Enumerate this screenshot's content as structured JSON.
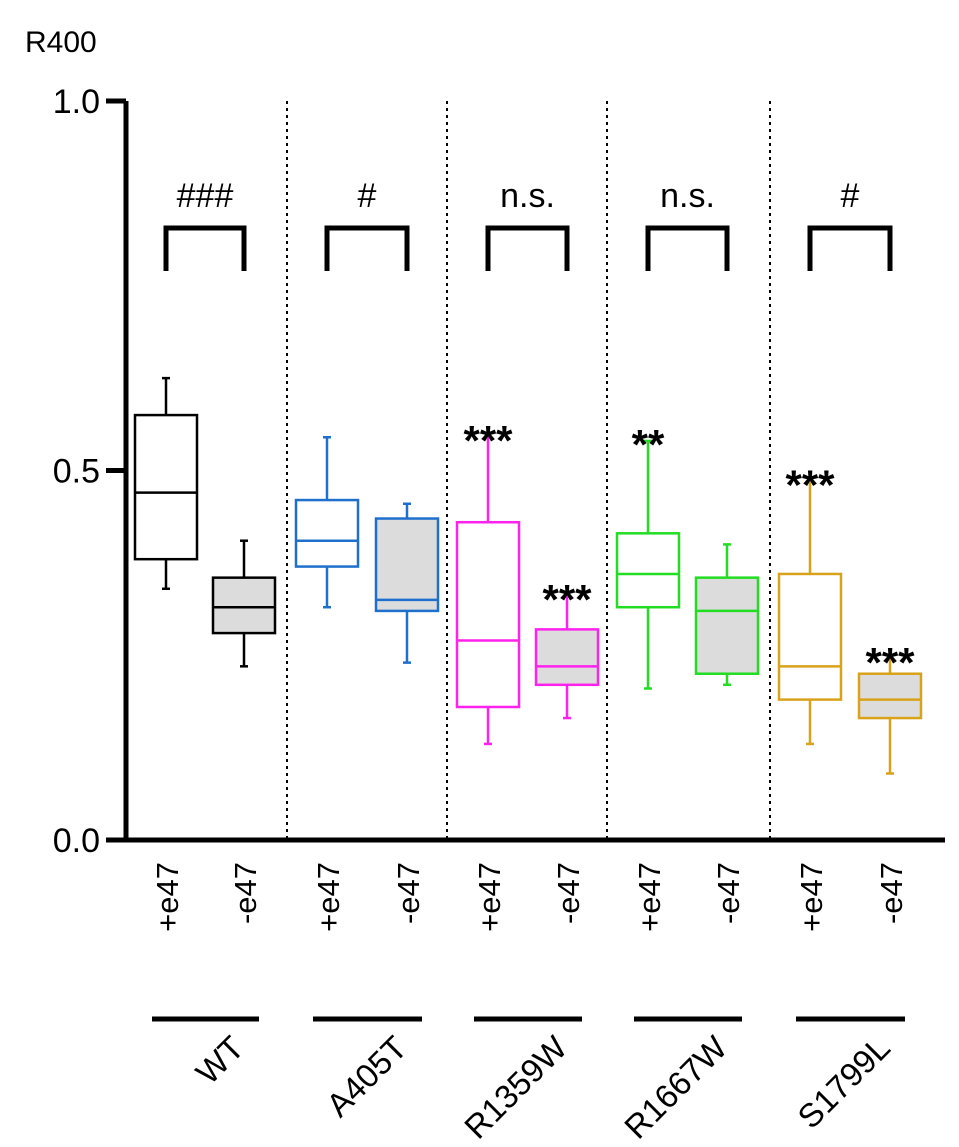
{
  "chart_data": {
    "type": "box",
    "ylabel": "R400",
    "ylim": [
      0.0,
      1.0
    ],
    "yticks": [
      0.0,
      0.5,
      1.0
    ],
    "ytick_labels": [
      "0.0",
      "0.5",
      "1.0"
    ],
    "groups": [
      {
        "name": "WT",
        "color": "#000000",
        "significance": "###",
        "boxes": [
          {
            "label": "+e47",
            "fill": "#ffffff",
            "min": 0.34,
            "q1": 0.38,
            "median": 0.47,
            "q3": 0.575,
            "max": 0.625,
            "annotation": ""
          },
          {
            "label": "-e47",
            "fill": "#dcdcdc",
            "min": 0.235,
            "q1": 0.28,
            "median": 0.315,
            "q3": 0.355,
            "max": 0.405,
            "annotation": ""
          }
        ]
      },
      {
        "name": "A405T",
        "color": "#1f6fcc",
        "significance": "#",
        "boxes": [
          {
            "label": "+e47",
            "fill": "#ffffff",
            "min": 0.315,
            "q1": 0.37,
            "median": 0.405,
            "q3": 0.46,
            "max": 0.545,
            "annotation": ""
          },
          {
            "label": "-e47",
            "fill": "#dcdcdc",
            "min": 0.24,
            "q1": 0.31,
            "median": 0.325,
            "q3": 0.435,
            "max": 0.455,
            "annotation": ""
          }
        ]
      },
      {
        "name": "R1359W",
        "color": "#ff22ee",
        "significance": "n.s.",
        "boxes": [
          {
            "label": "+e47",
            "fill": "#ffffff",
            "min": 0.13,
            "q1": 0.18,
            "median": 0.27,
            "q3": 0.43,
            "max": 0.545,
            "annotation": "***"
          },
          {
            "label": "-e47",
            "fill": "#dcdcdc",
            "min": 0.165,
            "q1": 0.21,
            "median": 0.235,
            "q3": 0.285,
            "max": 0.33,
            "annotation": "***"
          }
        ]
      },
      {
        "name": "R1667W",
        "color": "#22dd22",
        "significance": "n.s.",
        "boxes": [
          {
            "label": "+e47",
            "fill": "#ffffff",
            "min": 0.205,
            "q1": 0.315,
            "median": 0.36,
            "q3": 0.415,
            "max": 0.54,
            "annotation": "**"
          },
          {
            "label": "-e47",
            "fill": "#dcdcdc",
            "min": 0.21,
            "q1": 0.225,
            "median": 0.31,
            "q3": 0.355,
            "max": 0.4,
            "annotation": ""
          }
        ]
      },
      {
        "name": "S1799L",
        "color": "#d9a21b",
        "significance": "#",
        "boxes": [
          {
            "label": "+e47",
            "fill": "#ffffff",
            "min": 0.13,
            "q1": 0.19,
            "median": 0.235,
            "q3": 0.36,
            "max": 0.485,
            "annotation": "***"
          },
          {
            "label": "-e47",
            "fill": "#dcdcdc",
            "min": 0.09,
            "q1": 0.165,
            "median": 0.19,
            "q3": 0.225,
            "max": 0.245,
            "annotation": "***"
          }
        ]
      }
    ]
  }
}
